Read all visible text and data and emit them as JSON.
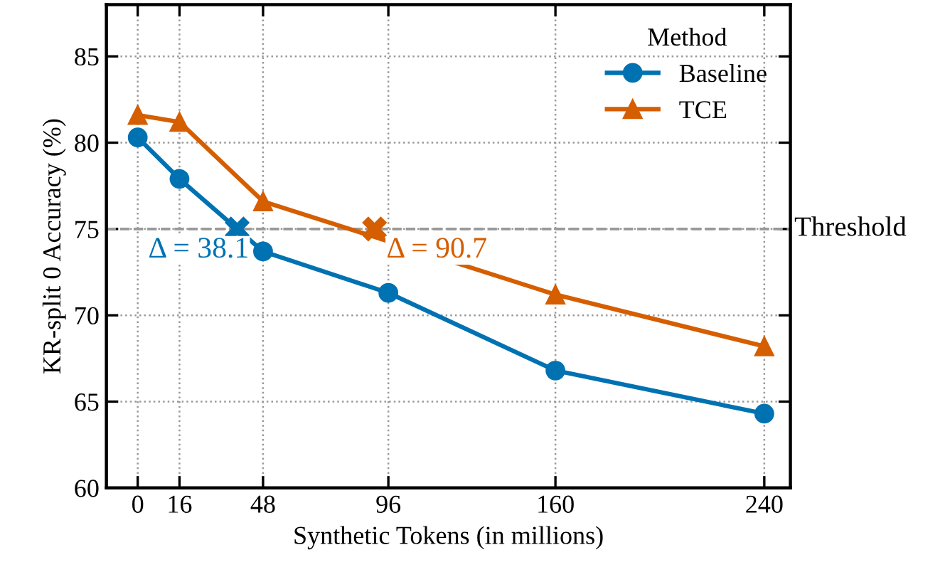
{
  "chart_data": {
    "type": "line",
    "xlabel": "Synthetic Tokens (in millions)",
    "ylabel": "KR-split 0 Accuracy (%)",
    "legend_title": "Method",
    "x": [
      0,
      16,
      48,
      96,
      160,
      240
    ],
    "series": [
      {
        "name": "Baseline",
        "color": "#0072b2",
        "marker": "circle",
        "values": [
          80.3,
          77.9,
          73.7,
          71.3,
          66.8,
          64.3
        ]
      },
      {
        "name": "TCE",
        "color": "#d55e00",
        "marker": "triangle",
        "x": [
          0,
          16,
          48,
          160,
          240
        ],
        "values": [
          81.6,
          81.2,
          76.6,
          71.2,
          68.2
        ]
      },
      {
        "type": "scatter",
        "color": "#0072b2",
        "marker": "cross",
        "x": [
          38.1
        ],
        "values": [
          75
        ]
      },
      {
        "type": "scatter",
        "color": "#d55e00",
        "marker": "cross",
        "x": [
          90.7
        ],
        "values": [
          75
        ]
      }
    ],
    "annotations": [
      {
        "text": "Δ = 38.1",
        "x": 38.1,
        "y": 75
      },
      {
        "text": "Δ = 90.7",
        "x": 90.7,
        "y": 75
      }
    ],
    "ref_lines": [
      {
        "axis": "y",
        "value": 75,
        "label": "Threshold",
        "color": "#999999",
        "line_style": "dashed"
      }
    ],
    "xlim": [
      -12,
      250
    ],
    "ylim": [
      60,
      88
    ],
    "xticks": [
      0,
      16,
      48,
      96,
      160,
      240
    ],
    "yticks": [
      60,
      65,
      70,
      75,
      80,
      85
    ],
    "grid": true,
    "legend": "top right",
    "line_style": "solid"
  }
}
